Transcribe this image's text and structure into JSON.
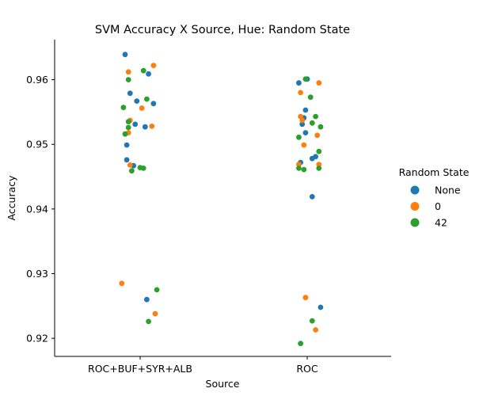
{
  "chart_data": {
    "type": "scatter",
    "subtype": "strip",
    "title": "SVM Accuracy X Source, Hue: Random State",
    "xlabel": "Source",
    "ylabel": "Accuracy",
    "categories": [
      "ROC+BUF+SYR+ALB",
      "ROC"
    ],
    "ylim": [
      0.9172,
      0.9662
    ],
    "yticks": [
      0.92,
      0.93,
      0.94,
      0.95,
      0.96
    ],
    "ytick_labels": [
      "0.92",
      "0.93",
      "0.94",
      "0.95",
      "0.96"
    ],
    "grid": false,
    "legend": {
      "title": "Random State",
      "placement": "right",
      "entries": [
        "None",
        "0",
        "42"
      ]
    },
    "series": [
      {
        "name": "None",
        "color": "#1f77b4",
        "points": [
          {
            "category": "ROC+BUF+SYR+ALB",
            "jitter": -0.09,
            "value": 0.9639
          },
          {
            "category": "ROC+BUF+SYR+ALB",
            "jitter": 0.05,
            "value": 0.9609
          },
          {
            "category": "ROC+BUF+SYR+ALB",
            "jitter": -0.06,
            "value": 0.9579
          },
          {
            "category": "ROC+BUF+SYR+ALB",
            "jitter": -0.02,
            "value": 0.9567
          },
          {
            "category": "ROC+BUF+SYR+ALB",
            "jitter": 0.08,
            "value": 0.9563
          },
          {
            "category": "ROC+BUF+SYR+ALB",
            "jitter": -0.03,
            "value": 0.9531
          },
          {
            "category": "ROC+BUF+SYR+ALB",
            "jitter": 0.03,
            "value": 0.9527
          },
          {
            "category": "ROC+BUF+SYR+ALB",
            "jitter": -0.08,
            "value": 0.9499
          },
          {
            "category": "ROC+BUF+SYR+ALB",
            "jitter": -0.08,
            "value": 0.9476
          },
          {
            "category": "ROC+BUF+SYR+ALB",
            "jitter": -0.04,
            "value": 0.9467
          },
          {
            "category": "ROC+BUF+SYR+ALB",
            "jitter": 0.04,
            "value": 0.926
          },
          {
            "category": "ROC",
            "jitter": -0.05,
            "value": 0.9595
          },
          {
            "category": "ROC",
            "jitter": 0.0,
            "value": 0.9601
          },
          {
            "category": "ROC",
            "jitter": -0.01,
            "value": 0.9553
          },
          {
            "category": "ROC",
            "jitter": -0.02,
            "value": 0.9541
          },
          {
            "category": "ROC",
            "jitter": -0.03,
            "value": 0.9531
          },
          {
            "category": "ROC",
            "jitter": -0.01,
            "value": 0.9518
          },
          {
            "category": "ROC",
            "jitter": 0.05,
            "value": 0.9481
          },
          {
            "category": "ROC",
            "jitter": 0.03,
            "value": 0.9478
          },
          {
            "category": "ROC",
            "jitter": -0.04,
            "value": 0.9472
          },
          {
            "category": "ROC",
            "jitter": 0.03,
            "value": 0.9419
          },
          {
            "category": "ROC",
            "jitter": 0.08,
            "value": 0.9248
          }
        ]
      },
      {
        "name": "0",
        "color": "#ff7f0e",
        "points": [
          {
            "category": "ROC+BUF+SYR+ALB",
            "jitter": 0.08,
            "value": 0.9622
          },
          {
            "category": "ROC+BUF+SYR+ALB",
            "jitter": -0.07,
            "value": 0.9612
          },
          {
            "category": "ROC+BUF+SYR+ALB",
            "jitter": 0.01,
            "value": 0.9556
          },
          {
            "category": "ROC+BUF+SYR+ALB",
            "jitter": -0.06,
            "value": 0.9537
          },
          {
            "category": "ROC+BUF+SYR+ALB",
            "jitter": 0.07,
            "value": 0.9528
          },
          {
            "category": "ROC+BUF+SYR+ALB",
            "jitter": -0.07,
            "value": 0.9518
          },
          {
            "category": "ROC+BUF+SYR+ALB",
            "jitter": -0.06,
            "value": 0.9468
          },
          {
            "category": "ROC+BUF+SYR+ALB",
            "jitter": -0.11,
            "value": 0.9285
          },
          {
            "category": "ROC+BUF+SYR+ALB",
            "jitter": 0.09,
            "value": 0.9238
          },
          {
            "category": "ROC",
            "jitter": -0.04,
            "value": 0.958
          },
          {
            "category": "ROC",
            "jitter": 0.07,
            "value": 0.9595
          },
          {
            "category": "ROC",
            "jitter": -0.04,
            "value": 0.9543
          },
          {
            "category": "ROC",
            "jitter": -0.03,
            "value": 0.9537
          },
          {
            "category": "ROC",
            "jitter": 0.06,
            "value": 0.9514
          },
          {
            "category": "ROC",
            "jitter": -0.02,
            "value": 0.9499
          },
          {
            "category": "ROC",
            "jitter": -0.05,
            "value": 0.9469
          },
          {
            "category": "ROC",
            "jitter": 0.07,
            "value": 0.9469
          },
          {
            "category": "ROC",
            "jitter": -0.01,
            "value": 0.9263
          },
          {
            "category": "ROC",
            "jitter": 0.05,
            "value": 0.9213
          }
        ]
      },
      {
        "name": "42",
        "color": "#2ca02c",
        "points": [
          {
            "category": "ROC+BUF+SYR+ALB",
            "jitter": 0.02,
            "value": 0.9614
          },
          {
            "category": "ROC+BUF+SYR+ALB",
            "jitter": -0.07,
            "value": 0.96
          },
          {
            "category": "ROC+BUF+SYR+ALB",
            "jitter": 0.04,
            "value": 0.957
          },
          {
            "category": "ROC+BUF+SYR+ALB",
            "jitter": -0.1,
            "value": 0.9557
          },
          {
            "category": "ROC+BUF+SYR+ALB",
            "jitter": -0.07,
            "value": 0.9535
          },
          {
            "category": "ROC+BUF+SYR+ALB",
            "jitter": -0.07,
            "value": 0.9526
          },
          {
            "category": "ROC+BUF+SYR+ALB",
            "jitter": -0.09,
            "value": 0.9516
          },
          {
            "category": "ROC+BUF+SYR+ALB",
            "jitter": 0.0,
            "value": 0.9464
          },
          {
            "category": "ROC+BUF+SYR+ALB",
            "jitter": 0.02,
            "value": 0.9463
          },
          {
            "category": "ROC+BUF+SYR+ALB",
            "jitter": -0.05,
            "value": 0.9459
          },
          {
            "category": "ROC+BUF+SYR+ALB",
            "jitter": 0.1,
            "value": 0.9275
          },
          {
            "category": "ROC+BUF+SYR+ALB",
            "jitter": 0.05,
            "value": 0.9226
          },
          {
            "category": "ROC",
            "jitter": -0.01,
            "value": 0.9601
          },
          {
            "category": "ROC",
            "jitter": 0.02,
            "value": 0.9573
          },
          {
            "category": "ROC",
            "jitter": 0.05,
            "value": 0.9543
          },
          {
            "category": "ROC",
            "jitter": 0.03,
            "value": 0.9533
          },
          {
            "category": "ROC",
            "jitter": 0.08,
            "value": 0.9527
          },
          {
            "category": "ROC",
            "jitter": -0.05,
            "value": 0.9511
          },
          {
            "category": "ROC",
            "jitter": 0.07,
            "value": 0.9489
          },
          {
            "category": "ROC",
            "jitter": -0.05,
            "value": 0.9463
          },
          {
            "category": "ROC",
            "jitter": 0.07,
            "value": 0.9463
          },
          {
            "category": "ROC",
            "jitter": -0.02,
            "value": 0.9461
          },
          {
            "category": "ROC",
            "jitter": 0.03,
            "value": 0.9227
          },
          {
            "category": "ROC",
            "jitter": -0.04,
            "value": 0.9192
          }
        ]
      }
    ]
  }
}
